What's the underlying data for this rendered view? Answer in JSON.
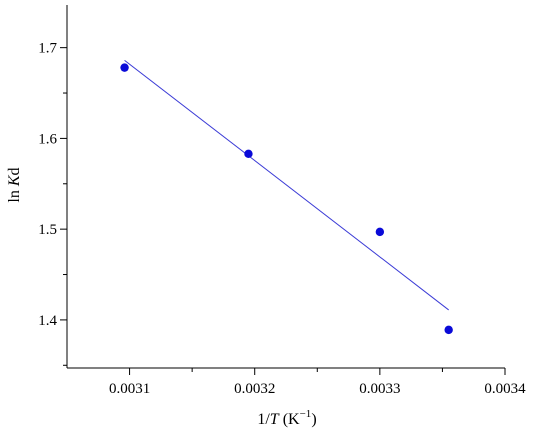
{
  "chart_data": {
    "type": "scatter",
    "xlabel": {
      "prefix": "1/",
      "var": "T",
      "unit": " (K",
      "exp": "−1",
      "close": ")"
    },
    "ylabel": {
      "prefix": "ln ",
      "var": "K",
      "suffix": "d"
    },
    "xlim": [
      0.00305,
      0.0034
    ],
    "ylim": [
      1.347,
      1.747
    ],
    "x_ticks": [
      0.0031,
      0.0032,
      0.0033,
      0.0034
    ],
    "x_tick_labels": [
      "0.0031",
      "0.0032",
      "0.0033",
      "0.0034"
    ],
    "y_ticks": [
      1.4,
      1.5,
      1.6,
      1.7
    ],
    "y_tick_labels": [
      "1.4",
      "1.5",
      "1.6",
      "1.7"
    ],
    "points": [
      {
        "x": 0.003096,
        "y": 1.678
      },
      {
        "x": 0.003195,
        "y": 1.583
      },
      {
        "x": 0.0033,
        "y": 1.497
      },
      {
        "x": 0.003355,
        "y": 1.389
      }
    ],
    "fit_line": {
      "x": [
        0.003096,
        0.003355
      ],
      "y": [
        1.686,
        1.411
      ]
    },
    "colors": {
      "points": "#0a0ad8",
      "fit_line": "#3b3bd6",
      "axes": "#000000"
    },
    "grid": false,
    "legend": "none"
  }
}
